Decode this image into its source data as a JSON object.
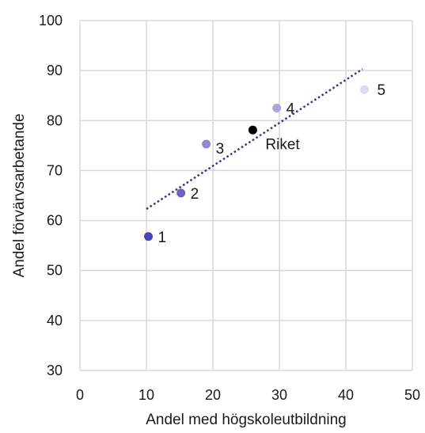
{
  "chart_data": {
    "type": "scatter",
    "xlabel": "Andel med högskoleutbildning",
    "ylabel": "Andel förvärvsarbetande",
    "xlim": [
      0,
      50
    ],
    "ylim": [
      30,
      100
    ],
    "xticks": [
      "0",
      "10",
      "20",
      "30",
      "40",
      "50"
    ],
    "yticks": [
      "30",
      "40",
      "50",
      "60",
      "70",
      "80",
      "90",
      "100"
    ],
    "grid": true,
    "points": [
      {
        "label": "1",
        "x": 10.3,
        "y": 56.8,
        "color": "#4a44b8"
      },
      {
        "label": "2",
        "x": 15.2,
        "y": 65.5,
        "color": "#6b63c4"
      },
      {
        "label": "3",
        "x": 19.0,
        "y": 75.3,
        "color": "#8e88d0"
      },
      {
        "label": "Riket",
        "x": 26.0,
        "y": 78.1,
        "color": "#000000"
      },
      {
        "label": "4",
        "x": 29.6,
        "y": 82.5,
        "color": "#aaa6dc"
      },
      {
        "label": "5",
        "x": 42.8,
        "y": 86.2,
        "color": "#dcdaf0"
      }
    ],
    "trendline": {
      "x": [
        10.0,
        42.5
      ],
      "y": [
        62.3,
        90.3
      ],
      "color": "#35309a",
      "style": "dotted"
    }
  }
}
